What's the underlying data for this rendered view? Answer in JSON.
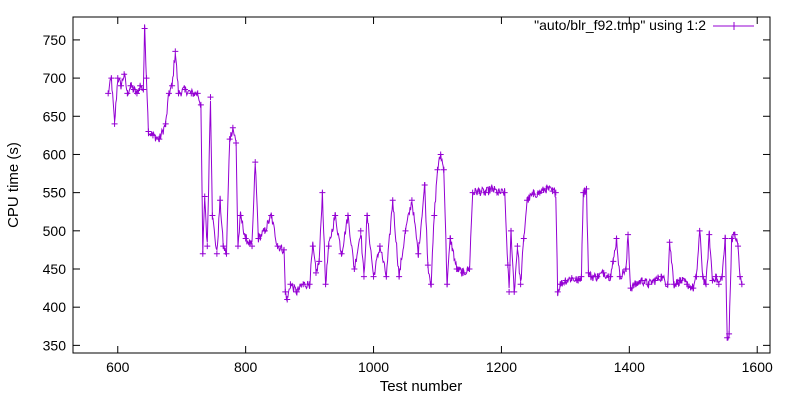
{
  "chart_data": {
    "type": "line",
    "xlabel": "Test number",
    "ylabel": "CPU time (s)",
    "xlim": [
      530,
      1620
    ],
    "ylim": [
      340,
      780
    ],
    "x_ticks": [
      600,
      800,
      1000,
      1200,
      1400,
      1600
    ],
    "y_ticks": [
      350,
      400,
      450,
      500,
      550,
      600,
      650,
      700,
      750
    ],
    "grid": false,
    "legend_position": "top-right",
    "marker": "plus",
    "series": [
      {
        "name": "\"auto/blr_f92.tmp\" using 1:2",
        "color": "#9400d3",
        "x_start": 585,
        "anchors": [
          [
            585,
            680
          ],
          [
            590,
            700
          ],
          [
            595,
            640
          ],
          [
            600,
            700
          ],
          [
            605,
            690
          ],
          [
            610,
            705
          ],
          [
            615,
            680
          ],
          [
            620,
            690
          ],
          [
            625,
            685
          ],
          [
            630,
            680
          ],
          [
            635,
            690
          ],
          [
            640,
            685
          ],
          [
            642,
            765
          ],
          [
            645,
            700
          ],
          [
            648,
            630
          ],
          [
            655,
            625
          ],
          [
            665,
            620
          ],
          [
            675,
            640
          ],
          [
            680,
            680
          ],
          [
            685,
            690
          ],
          [
            690,
            735
          ],
          [
            695,
            680
          ],
          [
            705,
            685
          ],
          [
            715,
            680
          ],
          [
            725,
            680
          ],
          [
            730,
            665
          ],
          [
            733,
            470
          ],
          [
            736,
            545
          ],
          [
            740,
            480
          ],
          [
            745,
            675
          ],
          [
            748,
            520
          ],
          [
            755,
            470
          ],
          [
            760,
            540
          ],
          [
            765,
            480
          ],
          [
            770,
            470
          ],
          [
            775,
            620
          ],
          [
            780,
            635
          ],
          [
            785,
            615
          ],
          [
            788,
            480
          ],
          [
            792,
            520
          ],
          [
            800,
            490
          ],
          [
            810,
            480
          ],
          [
            815,
            590
          ],
          [
            820,
            490
          ],
          [
            830,
            500
          ],
          [
            840,
            520
          ],
          [
            850,
            480
          ],
          [
            860,
            475
          ],
          [
            862,
            420
          ],
          [
            865,
            410
          ],
          [
            870,
            430
          ],
          [
            880,
            420
          ],
          [
            890,
            430
          ],
          [
            900,
            430
          ],
          [
            905,
            480
          ],
          [
            910,
            445
          ],
          [
            915,
            460
          ],
          [
            920,
            550
          ],
          [
            925,
            430
          ],
          [
            930,
            480
          ],
          [
            940,
            520
          ],
          [
            950,
            470
          ],
          [
            960,
            520
          ],
          [
            970,
            450
          ],
          [
            980,
            500
          ],
          [
            985,
            440
          ],
          [
            990,
            520
          ],
          [
            1000,
            440
          ],
          [
            1010,
            480
          ],
          [
            1020,
            440
          ],
          [
            1030,
            540
          ],
          [
            1040,
            440
          ],
          [
            1050,
            500
          ],
          [
            1060,
            540
          ],
          [
            1070,
            470
          ],
          [
            1080,
            560
          ],
          [
            1085,
            455
          ],
          [
            1090,
            430
          ],
          [
            1095,
            520
          ],
          [
            1100,
            580
          ],
          [
            1105,
            600
          ],
          [
            1110,
            580
          ],
          [
            1115,
            430
          ],
          [
            1120,
            490
          ],
          [
            1130,
            450
          ],
          [
            1140,
            445
          ],
          [
            1150,
            450
          ],
          [
            1155,
            550
          ],
          [
            1165,
            552
          ],
          [
            1175,
            550
          ],
          [
            1185,
            555
          ],
          [
            1195,
            550
          ],
          [
            1205,
            550
          ],
          [
            1210,
            455
          ],
          [
            1212,
            420
          ],
          [
            1215,
            500
          ],
          [
            1220,
            420
          ],
          [
            1225,
            480
          ],
          [
            1230,
            430
          ],
          [
            1235,
            490
          ],
          [
            1240,
            540
          ],
          [
            1250,
            548
          ],
          [
            1260,
            550
          ],
          [
            1270,
            555
          ],
          [
            1280,
            552
          ],
          [
            1285,
            550
          ],
          [
            1288,
            420
          ],
          [
            1292,
            430
          ],
          [
            1300,
            435
          ],
          [
            1310,
            438
          ],
          [
            1320,
            435
          ],
          [
            1325,
            440
          ],
          [
            1328,
            550
          ],
          [
            1333,
            555
          ],
          [
            1336,
            445
          ],
          [
            1340,
            440
          ],
          [
            1350,
            440
          ],
          [
            1360,
            445
          ],
          [
            1370,
            440
          ],
          [
            1375,
            460
          ],
          [
            1380,
            490
          ],
          [
            1385,
            440
          ],
          [
            1395,
            450
          ],
          [
            1398,
            495
          ],
          [
            1402,
            425
          ],
          [
            1410,
            430
          ],
          [
            1420,
            435
          ],
          [
            1430,
            430
          ],
          [
            1440,
            435
          ],
          [
            1450,
            440
          ],
          [
            1460,
            430
          ],
          [
            1463,
            485
          ],
          [
            1470,
            430
          ],
          [
            1480,
            435
          ],
          [
            1490,
            430
          ],
          [
            1500,
            425
          ],
          [
            1505,
            440
          ],
          [
            1510,
            500
          ],
          [
            1515,
            440
          ],
          [
            1520,
            430
          ],
          [
            1525,
            495
          ],
          [
            1530,
            435
          ],
          [
            1535,
            440
          ],
          [
            1540,
            430
          ],
          [
            1545,
            440
          ],
          [
            1550,
            490
          ],
          [
            1553,
            360
          ],
          [
            1556,
            365
          ],
          [
            1560,
            490
          ],
          [
            1565,
            495
          ],
          [
            1570,
            480
          ],
          [
            1573,
            440
          ],
          [
            1576,
            430
          ]
        ]
      }
    ]
  }
}
